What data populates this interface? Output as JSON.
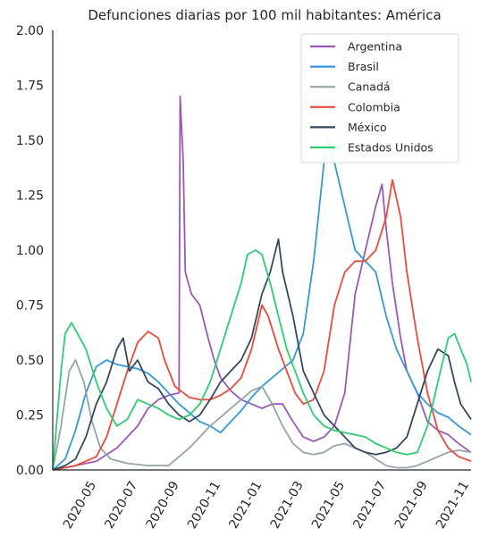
{
  "chart_data": {
    "type": "line",
    "title": "Defunciones diarias por 100 mil habitantes: América",
    "xlabel": "",
    "ylabel": "",
    "ylim": [
      0,
      2.0
    ],
    "y_ticks": [
      "0.00",
      "0.25",
      "0.50",
      "0.75",
      "1.00",
      "1.25",
      "1.50",
      "1.75",
      "2.00"
    ],
    "x_ticks": [
      "2020-05",
      "2020-07",
      "2020-09",
      "2020-11",
      "2021-01",
      "2021-03",
      "2021-05",
      "2021-07",
      "2021-09",
      "2021-11"
    ],
    "x_tick_months": [
      2,
      4,
      6,
      8,
      10,
      12,
      14,
      16,
      18,
      20
    ],
    "x_range_months": [
      -0.1,
      20.1
    ],
    "legend_position": "top-right",
    "grid": false,
    "series": [
      {
        "name": "Argentina",
        "color": "#9b59b6",
        "points": [
          [
            -0.1,
            0.0
          ],
          [
            0.5,
            0.01
          ],
          [
            1.0,
            0.02
          ],
          [
            2.0,
            0.04
          ],
          [
            3.0,
            0.1
          ],
          [
            4.0,
            0.2
          ],
          [
            4.5,
            0.28
          ],
          [
            5.0,
            0.32
          ],
          [
            5.5,
            0.34
          ],
          [
            6.0,
            0.35
          ],
          [
            6.05,
            1.7
          ],
          [
            6.2,
            1.4
          ],
          [
            6.3,
            0.9
          ],
          [
            6.6,
            0.8
          ],
          [
            7.0,
            0.75
          ],
          [
            7.4,
            0.6
          ],
          [
            7.7,
            0.5
          ],
          [
            8.0,
            0.42
          ],
          [
            8.5,
            0.36
          ],
          [
            9.0,
            0.32
          ],
          [
            9.5,
            0.3
          ],
          [
            10.0,
            0.28
          ],
          [
            10.5,
            0.3
          ],
          [
            11.0,
            0.3
          ],
          [
            11.5,
            0.22
          ],
          [
            12.0,
            0.15
          ],
          [
            12.5,
            0.13
          ],
          [
            13.0,
            0.15
          ],
          [
            13.5,
            0.2
          ],
          [
            14.0,
            0.35
          ],
          [
            14.5,
            0.8
          ],
          [
            15.0,
            1.0
          ],
          [
            15.5,
            1.2
          ],
          [
            15.8,
            1.3
          ],
          [
            16.0,
            1.1
          ],
          [
            16.3,
            0.85
          ],
          [
            16.7,
            0.6
          ],
          [
            17.0,
            0.45
          ],
          [
            17.5,
            0.35
          ],
          [
            18.0,
            0.22
          ],
          [
            18.5,
            0.18
          ],
          [
            19.0,
            0.16
          ],
          [
            19.5,
            0.12
          ],
          [
            20.1,
            0.08
          ]
        ]
      },
      {
        "name": "Brasil",
        "color": "#3498db",
        "points": [
          [
            -0.1,
            0.0
          ],
          [
            0.5,
            0.05
          ],
          [
            1.0,
            0.18
          ],
          [
            1.5,
            0.35
          ],
          [
            2.0,
            0.47
          ],
          [
            2.5,
            0.5
          ],
          [
            3.0,
            0.48
          ],
          [
            3.5,
            0.47
          ],
          [
            4.0,
            0.46
          ],
          [
            4.5,
            0.44
          ],
          [
            5.0,
            0.4
          ],
          [
            5.5,
            0.35
          ],
          [
            6.0,
            0.3
          ],
          [
            6.5,
            0.26
          ],
          [
            7.0,
            0.22
          ],
          [
            7.5,
            0.2
          ],
          [
            8.0,
            0.17
          ],
          [
            8.5,
            0.22
          ],
          [
            9.0,
            0.27
          ],
          [
            9.5,
            0.33
          ],
          [
            10.0,
            0.38
          ],
          [
            10.5,
            0.42
          ],
          [
            11.0,
            0.46
          ],
          [
            11.5,
            0.5
          ],
          [
            12.0,
            0.62
          ],
          [
            12.5,
            0.95
          ],
          [
            13.0,
            1.4
          ],
          [
            13.2,
            1.5
          ],
          [
            13.5,
            1.4
          ],
          [
            14.0,
            1.2
          ],
          [
            14.5,
            1.0
          ],
          [
            15.0,
            0.95
          ],
          [
            15.5,
            0.9
          ],
          [
            16.0,
            0.7
          ],
          [
            16.5,
            0.55
          ],
          [
            17.0,
            0.45
          ],
          [
            17.5,
            0.35
          ],
          [
            18.0,
            0.3
          ],
          [
            18.5,
            0.26
          ],
          [
            19.0,
            0.24
          ],
          [
            19.5,
            0.2
          ],
          [
            20.1,
            0.16
          ]
        ]
      },
      {
        "name": "Canadá",
        "color": "#95a5a6",
        "points": [
          [
            -0.1,
            0.0
          ],
          [
            0.3,
            0.2
          ],
          [
            0.7,
            0.45
          ],
          [
            1.0,
            0.5
          ],
          [
            1.4,
            0.4
          ],
          [
            1.8,
            0.22
          ],
          [
            2.2,
            0.1
          ],
          [
            2.7,
            0.05
          ],
          [
            3.5,
            0.03
          ],
          [
            4.5,
            0.02
          ],
          [
            5.5,
            0.02
          ],
          [
            6.0,
            0.06
          ],
          [
            6.5,
            0.1
          ],
          [
            7.0,
            0.15
          ],
          [
            7.5,
            0.2
          ],
          [
            8.0,
            0.24
          ],
          [
            8.5,
            0.28
          ],
          [
            9.0,
            0.32
          ],
          [
            9.5,
            0.36
          ],
          [
            10.0,
            0.38
          ],
          [
            10.5,
            0.3
          ],
          [
            11.0,
            0.2
          ],
          [
            11.5,
            0.12
          ],
          [
            12.0,
            0.08
          ],
          [
            12.5,
            0.07
          ],
          [
            13.0,
            0.08
          ],
          [
            13.5,
            0.11
          ],
          [
            14.0,
            0.12
          ],
          [
            14.5,
            0.1
          ],
          [
            15.0,
            0.08
          ],
          [
            15.5,
            0.05
          ],
          [
            16.0,
            0.02
          ],
          [
            16.5,
            0.01
          ],
          [
            17.0,
            0.01
          ],
          [
            17.5,
            0.02
          ],
          [
            18.0,
            0.04
          ],
          [
            18.5,
            0.06
          ],
          [
            19.0,
            0.08
          ],
          [
            19.5,
            0.09
          ],
          [
            20.1,
            0.08
          ]
        ]
      },
      {
        "name": "Colombia",
        "color": "#e74c3c",
        "points": [
          [
            -0.1,
            0.0
          ],
          [
            0.5,
            0.01
          ],
          [
            1.0,
            0.02
          ],
          [
            1.5,
            0.04
          ],
          [
            2.0,
            0.06
          ],
          [
            2.5,
            0.15
          ],
          [
            3.0,
            0.3
          ],
          [
            3.5,
            0.45
          ],
          [
            4.0,
            0.58
          ],
          [
            4.5,
            0.63
          ],
          [
            5.0,
            0.6
          ],
          [
            5.3,
            0.5
          ],
          [
            5.8,
            0.38
          ],
          [
            6.5,
            0.33
          ],
          [
            7.0,
            0.32
          ],
          [
            7.5,
            0.32
          ],
          [
            8.0,
            0.34
          ],
          [
            8.5,
            0.37
          ],
          [
            9.0,
            0.42
          ],
          [
            9.5,
            0.55
          ],
          [
            10.0,
            0.75
          ],
          [
            10.3,
            0.7
          ],
          [
            10.8,
            0.55
          ],
          [
            11.2,
            0.45
          ],
          [
            11.6,
            0.35
          ],
          [
            12.0,
            0.3
          ],
          [
            12.5,
            0.32
          ],
          [
            13.0,
            0.45
          ],
          [
            13.5,
            0.75
          ],
          [
            14.0,
            0.9
          ],
          [
            14.5,
            0.95
          ],
          [
            15.0,
            0.95
          ],
          [
            15.5,
            1.0
          ],
          [
            16.0,
            1.15
          ],
          [
            16.3,
            1.32
          ],
          [
            16.7,
            1.15
          ],
          [
            17.0,
            0.9
          ],
          [
            17.5,
            0.6
          ],
          [
            18.0,
            0.35
          ],
          [
            18.5,
            0.18
          ],
          [
            19.0,
            0.1
          ],
          [
            19.5,
            0.06
          ],
          [
            20.1,
            0.04
          ]
        ]
      },
      {
        "name": "México",
        "color": "#34495e",
        "points": [
          [
            -0.1,
            0.0
          ],
          [
            0.5,
            0.02
          ],
          [
            1.0,
            0.05
          ],
          [
            1.5,
            0.15
          ],
          [
            2.0,
            0.3
          ],
          [
            2.5,
            0.4
          ],
          [
            3.0,
            0.55
          ],
          [
            3.3,
            0.6
          ],
          [
            3.6,
            0.45
          ],
          [
            4.0,
            0.5
          ],
          [
            4.5,
            0.4
          ],
          [
            5.0,
            0.37
          ],
          [
            5.5,
            0.3
          ],
          [
            6.0,
            0.25
          ],
          [
            6.5,
            0.22
          ],
          [
            7.0,
            0.25
          ],
          [
            7.5,
            0.32
          ],
          [
            8.0,
            0.4
          ],
          [
            8.5,
            0.45
          ],
          [
            9.0,
            0.5
          ],
          [
            9.5,
            0.6
          ],
          [
            10.0,
            0.8
          ],
          [
            10.4,
            0.9
          ],
          [
            10.8,
            1.05
          ],
          [
            11.0,
            0.9
          ],
          [
            11.5,
            0.7
          ],
          [
            12.0,
            0.45
          ],
          [
            12.5,
            0.35
          ],
          [
            13.0,
            0.25
          ],
          [
            13.5,
            0.2
          ],
          [
            14.0,
            0.15
          ],
          [
            14.5,
            0.1
          ],
          [
            15.0,
            0.08
          ],
          [
            15.5,
            0.07
          ],
          [
            16.0,
            0.08
          ],
          [
            16.5,
            0.1
          ],
          [
            17.0,
            0.15
          ],
          [
            17.5,
            0.3
          ],
          [
            18.0,
            0.45
          ],
          [
            18.5,
            0.55
          ],
          [
            19.0,
            0.52
          ],
          [
            19.3,
            0.4
          ],
          [
            19.6,
            0.3
          ],
          [
            20.1,
            0.23
          ]
        ]
      },
      {
        "name": "Estados Unidos",
        "color": "#2ecc71",
        "points": [
          [
            -0.1,
            0.0
          ],
          [
            0.3,
            0.45
          ],
          [
            0.5,
            0.62
          ],
          [
            0.8,
            0.67
          ],
          [
            1.1,
            0.62
          ],
          [
            1.5,
            0.55
          ],
          [
            2.0,
            0.4
          ],
          [
            2.5,
            0.28
          ],
          [
            3.0,
            0.2
          ],
          [
            3.5,
            0.23
          ],
          [
            4.0,
            0.32
          ],
          [
            4.5,
            0.3
          ],
          [
            5.0,
            0.28
          ],
          [
            5.5,
            0.25
          ],
          [
            6.0,
            0.23
          ],
          [
            6.5,
            0.25
          ],
          [
            7.0,
            0.3
          ],
          [
            7.5,
            0.4
          ],
          [
            8.0,
            0.55
          ],
          [
            8.5,
            0.7
          ],
          [
            9.0,
            0.85
          ],
          [
            9.3,
            0.98
          ],
          [
            9.7,
            1.0
          ],
          [
            10.0,
            0.98
          ],
          [
            10.4,
            0.85
          ],
          [
            10.8,
            0.7
          ],
          [
            11.2,
            0.55
          ],
          [
            11.6,
            0.45
          ],
          [
            12.0,
            0.35
          ],
          [
            12.5,
            0.25
          ],
          [
            13.0,
            0.2
          ],
          [
            13.5,
            0.18
          ],
          [
            14.0,
            0.17
          ],
          [
            14.5,
            0.16
          ],
          [
            15.0,
            0.15
          ],
          [
            15.5,
            0.12
          ],
          [
            16.0,
            0.1
          ],
          [
            16.5,
            0.08
          ],
          [
            17.0,
            0.07
          ],
          [
            17.5,
            0.08
          ],
          [
            18.0,
            0.2
          ],
          [
            18.5,
            0.4
          ],
          [
            19.0,
            0.6
          ],
          [
            19.3,
            0.62
          ],
          [
            19.6,
            0.55
          ],
          [
            19.9,
            0.48
          ],
          [
            20.1,
            0.4
          ]
        ]
      }
    ]
  }
}
